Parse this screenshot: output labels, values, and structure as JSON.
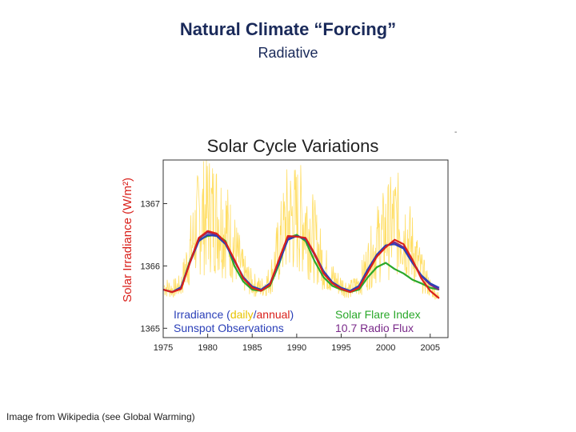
{
  "slide": {
    "title": "Natural Climate “Forcing”",
    "subtitle": "Radiative",
    "caption": "Image from Wikipedia (see Global Warming)"
  },
  "chart_data": {
    "type": "line",
    "title": "Solar Cycle Variations",
    "ylabel": "Solar Irradiance (W/m²)",
    "xlim": [
      1975,
      2007
    ],
    "ylim": [
      1364.85,
      1367.7
    ],
    "x_ticks": [
      1975,
      1980,
      1985,
      1990,
      1995,
      2000,
      2005
    ],
    "y_ticks": [
      1365,
      1366,
      1367
    ],
    "grid": false,
    "legend": {
      "placement": "bottom",
      "irradiance_prefix": "Irradiance (",
      "daily_label": "daily",
      "slash": "/",
      "annual_label": "annual",
      "irradiance_suffix": ")",
      "sunspot_label": "Sunspot Observations",
      "flare_label": "Solar Flare Index",
      "radio_label": "10.7 Radio Flux"
    },
    "colors": {
      "daily": "#ffd84a",
      "annual": "#d9201b",
      "sunspot": "#2a3fb8",
      "flare": "#2aa82a",
      "radio": "#7a2a8a",
      "axis_label": "#d9201b",
      "title": "#222222"
    },
    "series": [
      {
        "name": "annual",
        "x": [
          1975,
          1976,
          1977,
          1978,
          1979,
          1980,
          1981,
          1982,
          1983,
          1984,
          1985,
          1986,
          1987,
          1988,
          1989,
          1990,
          1991,
          1992,
          1993,
          1994,
          1995,
          1996,
          1997,
          1998,
          1999,
          2000,
          2001,
          2002,
          2003,
          2004,
          2005,
          2006
        ],
        "values": [
          1365.62,
          1365.58,
          1365.63,
          1366.05,
          1366.45,
          1366.56,
          1366.52,
          1366.38,
          1366.1,
          1365.8,
          1365.65,
          1365.6,
          1365.7,
          1366.1,
          1366.48,
          1366.47,
          1366.45,
          1366.2,
          1365.88,
          1365.72,
          1365.63,
          1365.58,
          1365.65,
          1365.9,
          1366.15,
          1366.3,
          1366.42,
          1366.35,
          1366.1,
          1365.8,
          1365.6,
          1365.48
        ]
      },
      {
        "name": "sunspot",
        "x": [
          1975,
          1976,
          1977,
          1978,
          1979,
          1980,
          1981,
          1982,
          1983,
          1984,
          1985,
          1986,
          1987,
          1988,
          1989,
          1990,
          1991,
          1992,
          1993,
          1994,
          1995,
          1996,
          1997,
          1998,
          1999,
          2000,
          2001,
          2002,
          2003,
          2004,
          2005,
          2006
        ],
        "values": [
          1365.62,
          1365.58,
          1365.66,
          1366.05,
          1366.4,
          1366.5,
          1366.48,
          1366.35,
          1366.08,
          1365.82,
          1365.67,
          1365.62,
          1365.72,
          1366.05,
          1366.42,
          1366.48,
          1366.43,
          1366.2,
          1365.92,
          1365.74,
          1365.65,
          1365.6,
          1365.68,
          1365.95,
          1366.18,
          1366.33,
          1366.35,
          1366.28,
          1366.05,
          1365.85,
          1365.72,
          1365.65
        ]
      },
      {
        "name": "flare",
        "x": [
          1975,
          1976,
          1977,
          1978,
          1979,
          1980,
          1981,
          1982,
          1983,
          1984,
          1985,
          1986,
          1987,
          1988,
          1989,
          1990,
          1991,
          1992,
          1993,
          1994,
          1995,
          1996,
          1997,
          1998,
          1999,
          2000,
          2001,
          2002,
          2003,
          2004,
          2005,
          2006
        ],
        "values": [
          1365.62,
          1365.58,
          1365.65,
          1366.08,
          1366.42,
          1366.48,
          1366.5,
          1366.4,
          1366.0,
          1365.75,
          1365.62,
          1365.6,
          1365.68,
          1366.02,
          1366.45,
          1366.5,
          1366.4,
          1366.08,
          1365.82,
          1365.68,
          1365.62,
          1365.58,
          1365.62,
          1365.82,
          1365.98,
          1366.05,
          1365.95,
          1365.88,
          1365.78,
          1365.72,
          1365.65,
          1365.62
        ]
      },
      {
        "name": "radio",
        "x": [
          1975,
          1976,
          1977,
          1978,
          1979,
          1980,
          1981,
          1982,
          1983,
          1984,
          1985,
          1986,
          1987,
          1988,
          1989,
          1990,
          1991,
          1992,
          1993,
          1994,
          1995,
          1996,
          1997,
          1998,
          1999,
          2000,
          2001,
          2002,
          2003,
          2004,
          2005,
          2006
        ],
        "values": [
          1365.62,
          1365.58,
          1365.64,
          1366.06,
          1366.44,
          1366.54,
          1366.5,
          1366.37,
          1366.09,
          1365.81,
          1365.66,
          1365.61,
          1365.71,
          1366.08,
          1366.45,
          1366.48,
          1366.44,
          1366.18,
          1365.9,
          1365.73,
          1365.64,
          1365.59,
          1365.66,
          1365.92,
          1366.16,
          1366.32,
          1366.38,
          1366.3,
          1366.08,
          1365.84,
          1365.7,
          1365.62
        ]
      }
    ]
  }
}
